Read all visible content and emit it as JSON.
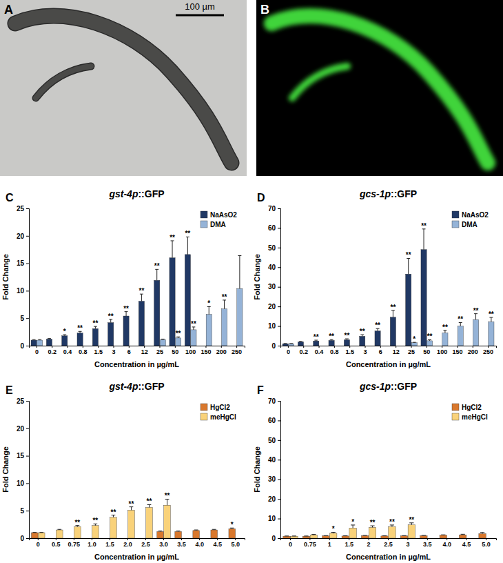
{
  "images": [
    {
      "label": "A",
      "scale_bar": "100 µm"
    },
    {
      "label": "B"
    }
  ],
  "chart_data": [
    {
      "type": "bar",
      "panel": "C",
      "title": "gst-4p::GFP",
      "x_label": "Concentration in µg/mL",
      "y_label": "Fold Change",
      "categories": [
        "0",
        "0.2",
        "0.4",
        "0.8",
        "1.5",
        "3",
        "6",
        "12",
        "25",
        "50",
        "100",
        "150",
        "200",
        "250"
      ],
      "series": [
        {
          "name": "NaAsO2",
          "color": "#203864",
          "values": [
            1.0,
            1.2,
            1.8,
            2.3,
            3.1,
            4.2,
            5.4,
            8.1,
            11.9,
            16.0,
            16.6,
            null,
            null,
            null
          ],
          "errors": [
            0.1,
            0.1,
            0.2,
            0.3,
            0.4,
            0.6,
            0.8,
            1.3,
            2.0,
            3.1,
            3.2,
            null,
            null,
            null
          ],
          "significance": [
            null,
            null,
            "*",
            "**",
            "**",
            "**",
            "**",
            "**",
            "**",
            "**",
            "**",
            null,
            null,
            null
          ]
        },
        {
          "name": "DMA",
          "color": "#95b3d7",
          "values": [
            1.0,
            null,
            null,
            null,
            null,
            null,
            null,
            null,
            1.1,
            1.4,
            2.9,
            5.7,
            6.7,
            10.4
          ],
          "errors": [
            0.1,
            null,
            null,
            null,
            null,
            null,
            null,
            null,
            0.1,
            0.2,
            0.5,
            1.4,
            1.6,
            6.0
          ],
          "significance": [
            null,
            null,
            null,
            null,
            null,
            null,
            null,
            null,
            null,
            "**",
            "**",
            "*",
            "**",
            null
          ]
        }
      ],
      "ylim": [
        0,
        25
      ],
      "yticks": [
        0,
        5,
        10,
        15,
        20,
        25
      ],
      "legend": "upper right"
    },
    {
      "type": "bar",
      "panel": "D",
      "title": "gcs-1p::GFP",
      "x_label": "Concentration in µg/mL",
      "y_label": "Fold Change",
      "categories": [
        "0",
        "0.2",
        "0.4",
        "0.8",
        "1.5",
        "3",
        "6",
        "12",
        "25",
        "50",
        "100",
        "150",
        "200",
        "250"
      ],
      "series": [
        {
          "name": "NaAsO2",
          "color": "#203864",
          "values": [
            1.0,
            1.9,
            2.4,
            2.7,
            3.0,
            4.8,
            7.5,
            14.5,
            36.5,
            49.0,
            null,
            null,
            null,
            null
          ],
          "errors": [
            0.1,
            0.3,
            0.4,
            0.4,
            0.5,
            0.8,
            1.2,
            3.5,
            8.0,
            10.5,
            null,
            null,
            null,
            null
          ],
          "significance": [
            null,
            null,
            "**",
            "**",
            "**",
            "**",
            "**",
            "**",
            "**",
            "**",
            null,
            null,
            null,
            null
          ]
        },
        {
          "name": "DMA",
          "color": "#95b3d7",
          "values": [
            1.0,
            null,
            null,
            null,
            null,
            null,
            null,
            null,
            1.5,
            2.5,
            6.5,
            10.0,
            13.3,
            12.2
          ],
          "errors": [
            0.1,
            null,
            null,
            null,
            null,
            null,
            null,
            null,
            0.2,
            0.5,
            1.3,
            1.8,
            3.0,
            2.2
          ],
          "significance": [
            null,
            null,
            null,
            null,
            null,
            null,
            null,
            null,
            "*",
            "**",
            "**",
            "**",
            "**",
            "**"
          ]
        }
      ],
      "ylim": [
        0,
        70
      ],
      "yticks": [
        0,
        10,
        20,
        30,
        40,
        50,
        60,
        70
      ],
      "legend": "upper right"
    },
    {
      "type": "bar",
      "panel": "E",
      "title": "gst-4p::GFP",
      "x_label": "Concentration in µg/mL",
      "y_label": "Fold Change",
      "categories": [
        "0",
        "0.5",
        "0.75",
        "1.0",
        "1.5",
        "2.0",
        "2.5",
        "3.0",
        "3.5",
        "4.0",
        "4.5",
        "5.0"
      ],
      "series": [
        {
          "name": "HgCl2",
          "color": "#d9782d",
          "values": [
            1.0,
            null,
            null,
            null,
            null,
            null,
            null,
            1.2,
            1.2,
            1.4,
            1.5,
            1.7
          ],
          "errors": [
            0.05,
            null,
            null,
            null,
            null,
            null,
            null,
            0.1,
            0.1,
            0.1,
            0.1,
            0.15
          ],
          "significance": [
            null,
            null,
            null,
            null,
            null,
            null,
            null,
            null,
            null,
            null,
            null,
            "*"
          ]
        },
        {
          "name": "meHgCl",
          "color": "#f9d27a",
          "values": [
            1.0,
            1.5,
            2.1,
            2.3,
            3.8,
            5.1,
            5.6,
            6.0,
            null,
            null,
            null,
            null
          ],
          "errors": [
            0.05,
            0.1,
            0.2,
            0.3,
            0.4,
            0.6,
            0.5,
            1.1,
            null,
            null,
            null,
            null
          ],
          "significance": [
            null,
            null,
            "**",
            "**",
            "**",
            "**",
            "**",
            "**",
            null,
            null,
            null,
            null
          ]
        }
      ],
      "ylim": [
        0,
        25
      ],
      "yticks": [
        0,
        5,
        10,
        15,
        20,
        25
      ],
      "legend": "upper right"
    },
    {
      "type": "bar",
      "panel": "F",
      "title": "gcs-1p::GFP",
      "x_label": "Concentration in µg/mL",
      "y_label": "Fold Change",
      "categories": [
        "0",
        "0.75",
        "1",
        "1.5",
        "2",
        "2.5",
        "3",
        "3.5",
        "4.0",
        "4.5",
        "5.0"
      ],
      "series": [
        {
          "name": "HgCl2",
          "color": "#d9782d",
          "values": [
            1.0,
            1.0,
            1.2,
            1.1,
            1.3,
            1.1,
            1.2,
            1.3,
            1.5,
            1.7,
            2.3
          ],
          "errors": [
            0.1,
            0.1,
            0.1,
            0.1,
            0.1,
            0.1,
            0.1,
            0.1,
            0.2,
            0.3,
            0.6
          ],
          "significance": [
            null,
            null,
            null,
            null,
            null,
            null,
            null,
            null,
            null,
            null,
            null
          ]
        },
        {
          "name": "meHgCl",
          "color": "#f9d27a",
          "values": [
            1.0,
            1.6,
            2.5,
            5.2,
            5.5,
            5.9,
            6.8,
            null,
            null,
            null,
            null
          ],
          "errors": [
            0.1,
            0.3,
            0.5,
            1.5,
            0.8,
            0.8,
            1.0,
            null,
            null,
            null,
            null
          ],
          "significance": [
            null,
            null,
            "*",
            "*",
            "**",
            "**",
            "**",
            null,
            null,
            null,
            null
          ]
        }
      ],
      "ylim": [
        0,
        70
      ],
      "yticks": [
        0,
        10,
        20,
        30,
        40,
        50,
        60,
        70
      ],
      "legend": "upper right"
    }
  ]
}
